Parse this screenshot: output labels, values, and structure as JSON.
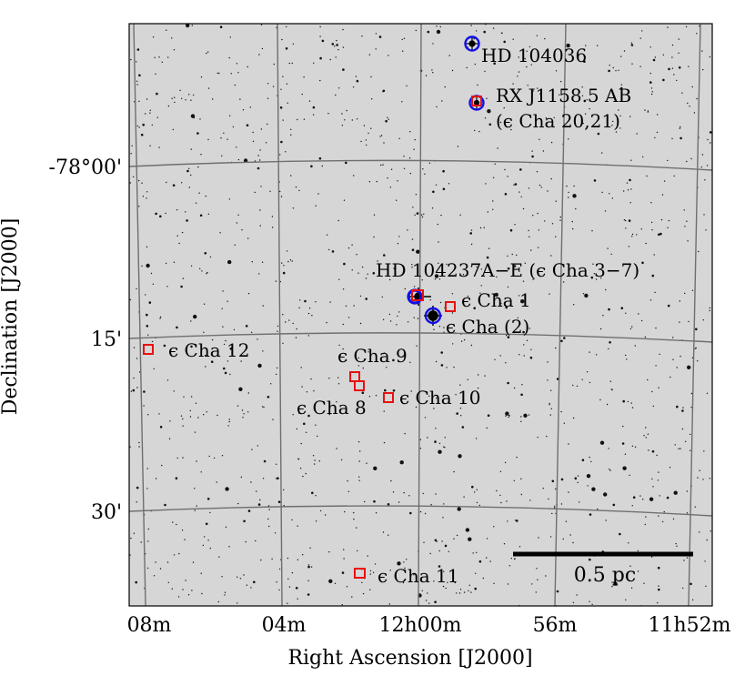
{
  "axes": {
    "xlabel": "Right Ascension [J2000]",
    "ylabel": "Declination [J2000]",
    "x_ticks": [
      "08m",
      "04m",
      "12h00m",
      "56m",
      "11h52m"
    ],
    "y_ticks": [
      "-78°00'",
      "15'",
      "30'"
    ]
  },
  "scale_bar": {
    "label": "0.5 pc"
  },
  "objects": [
    {
      "id": "hd104036",
      "label": "HD 104036",
      "marker": "blue-circle"
    },
    {
      "id": "rxj1158",
      "label": "RX J1158.5 AB",
      "label2": "(ϵ Cha 20,21)",
      "marker": "blue-circle+red-square"
    },
    {
      "id": "hd104237",
      "label": "HD 104237A−E (ϵ Cha 3−7)",
      "marker": "blue-circle+red-square"
    },
    {
      "id": "eps-cha-1",
      "label": "ϵ Cha 1",
      "marker": "red-square"
    },
    {
      "id": "eps-cha-2",
      "label": "ϵ Cha (2)",
      "marker": "blue-circle"
    },
    {
      "id": "eps-cha-12",
      "label": "ϵ Cha 12",
      "marker": "red-square"
    },
    {
      "id": "eps-cha-9",
      "label": "ϵ Cha 9",
      "marker": "red-square"
    },
    {
      "id": "eps-cha-8",
      "label": "ϵ Cha 8",
      "marker": "red-square"
    },
    {
      "id": "eps-cha-10",
      "label": "ϵ Cha 10",
      "marker": "red-square"
    },
    {
      "id": "eps-cha-11",
      "label": "ϵ Cha 11",
      "marker": "red-square"
    }
  ],
  "colors": {
    "circle": "#1010e6",
    "square": "#e81010",
    "grid": "#6f6f6f",
    "sky": "#d6d6d6"
  }
}
